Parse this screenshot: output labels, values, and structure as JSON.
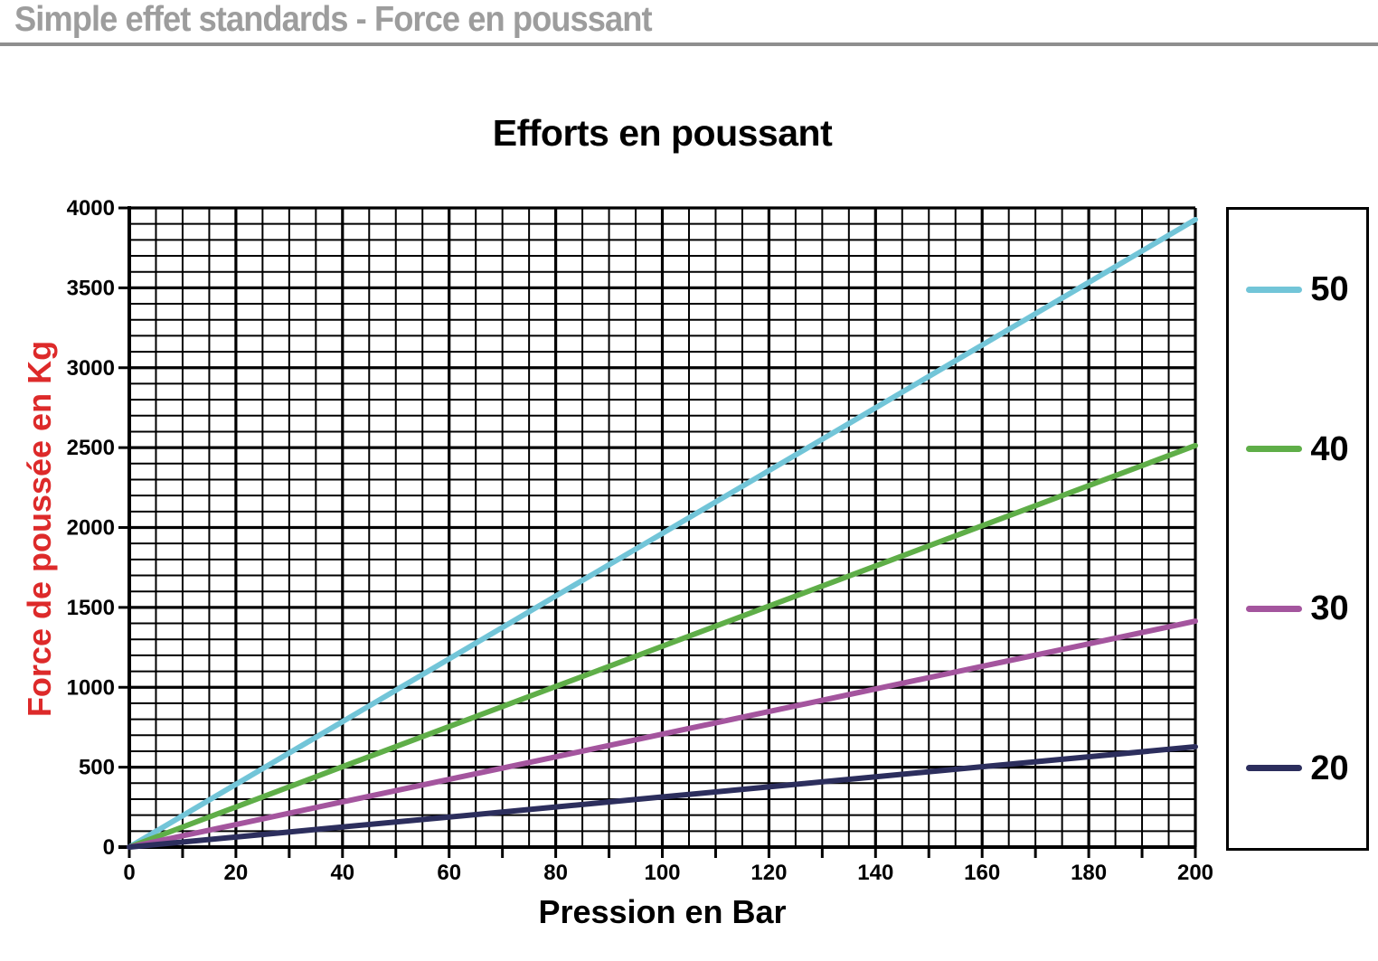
{
  "header": {
    "title": "Simple effet standards - Force en poussant"
  },
  "colors": {
    "header_title": "#9d9d9d",
    "header_underline": "#8f8f8f",
    "axis_title_red": "#dd2a2a",
    "grid": "#000000",
    "series_50": "#72c5d8",
    "series_40": "#5fae48",
    "series_30": "#a4559e",
    "series_20": "#2c2e5d"
  },
  "chart_data": {
    "type": "line",
    "title": "Efforts en poussant",
    "xlabel": "Pression en Bar",
    "ylabel": "Force de poussée en Kg",
    "xlim": [
      0,
      200
    ],
    "ylim": [
      0,
      4000
    ],
    "x_major_ticks": [
      0,
      20,
      40,
      60,
      80,
      100,
      120,
      140,
      160,
      180,
      200
    ],
    "y_major_ticks": [
      0,
      500,
      1000,
      1500,
      2000,
      2500,
      3000,
      3500,
      4000
    ],
    "x_minor_step": 5,
    "y_minor_step": 100,
    "x_tick_mark_step": 10,
    "grid": true,
    "legend_position": "right",
    "x": [
      0,
      20,
      40,
      60,
      80,
      100,
      120,
      140,
      160,
      180,
      200
    ],
    "series": [
      {
        "name": "50",
        "color": "#72c5d8",
        "values": [
          0,
          393,
          785,
          1178,
          1571,
          1963,
          2356,
          2749,
          3142,
          3534,
          3927
        ]
      },
      {
        "name": "40",
        "color": "#5fae48",
        "values": [
          0,
          251,
          503,
          754,
          1005,
          1257,
          1508,
          1759,
          2011,
          2262,
          2513
        ]
      },
      {
        "name": "30",
        "color": "#a4559e",
        "values": [
          0,
          141,
          283,
          424,
          565,
          707,
          848,
          990,
          1131,
          1272,
          1414
        ]
      },
      {
        "name": "20",
        "color": "#2c2e5d",
        "values": [
          0,
          63,
          126,
          188,
          251,
          314,
          377,
          440,
          503,
          565,
          628
        ]
      }
    ]
  }
}
